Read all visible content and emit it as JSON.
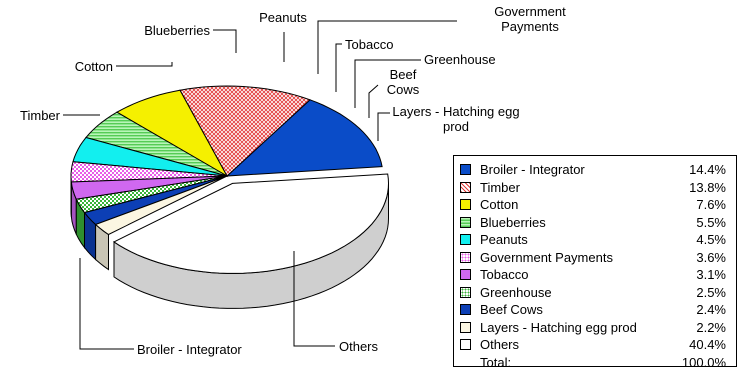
{
  "chart_data": {
    "type": "pie",
    "style": "3d-exploded",
    "slices": [
      {
        "label": "Broiler - Integrator",
        "callout": "Broiler - Integrator",
        "value": 14.4,
        "display": "14.4%",
        "color": "#0a4cc8",
        "pattern": "solid"
      },
      {
        "label": "Timber",
        "callout": "Timber",
        "value": 13.8,
        "display": "13.8%",
        "color": "#e23a3a",
        "pattern": "crosshatch"
      },
      {
        "label": "Cotton",
        "callout": "Cotton",
        "value": 7.6,
        "display": "7.6%",
        "color": "#f5f000",
        "pattern": "solid"
      },
      {
        "label": "Blueberries",
        "callout": "Blueberries",
        "value": 5.5,
        "display": "5.5%",
        "color": "#7be07b",
        "pattern": "hlines"
      },
      {
        "label": "Peanuts",
        "callout": "Peanuts",
        "value": 4.5,
        "display": "4.5%",
        "color": "#12efef",
        "pattern": "solid"
      },
      {
        "label": "Government Payments",
        "callout": "Government Payments",
        "value": 3.6,
        "display": "3.6%",
        "color": "#e85ee8",
        "pattern": "dots"
      },
      {
        "label": "Tobacco",
        "callout": "Tobacco",
        "value": 3.1,
        "display": "3.1%",
        "color": "#d068f0",
        "pattern": "solid"
      },
      {
        "label": "Greenhouse",
        "callout": "Greenhouse",
        "value": 2.5,
        "display": "2.5%",
        "color": "#39b339",
        "pattern": "dots"
      },
      {
        "label": "Beef Cows",
        "callout": "Beef Cows",
        "value": 2.4,
        "display": "2.4%",
        "color": "#0c3fb5",
        "pattern": "solid"
      },
      {
        "label": "Layers - Hatching egg prod",
        "callout": "Layers - Hatching egg prod",
        "value": 2.2,
        "display": "2.2%",
        "color": "#fbf6e2",
        "pattern": "solid"
      },
      {
        "label": "Others",
        "callout": "Others",
        "value": 40.4,
        "display": "40.4%",
        "color": "#ffffff",
        "pattern": "solid"
      }
    ],
    "total_label": "Total:",
    "total_value": "100.0%",
    "legend_position": "right"
  }
}
